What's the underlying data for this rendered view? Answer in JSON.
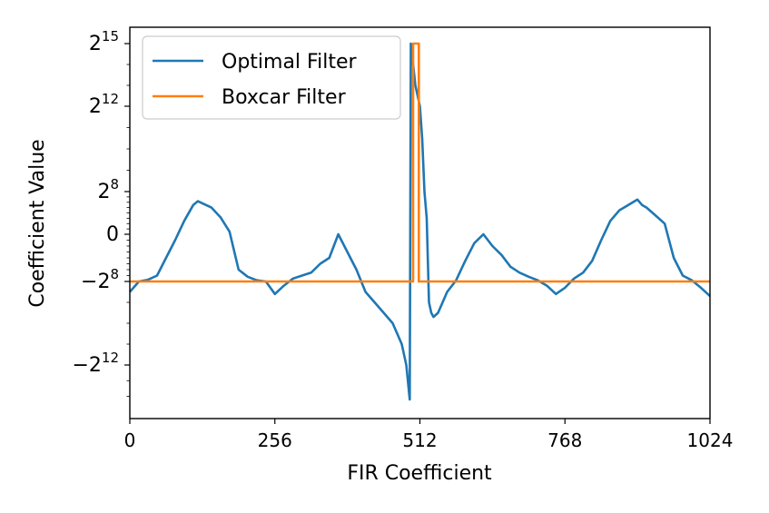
{
  "chart_data": {
    "type": "line",
    "title": "",
    "xlabel": "FIR Coefficient",
    "ylabel": "Coefficient  Value",
    "xlim": [
      0,
      1024
    ],
    "yscale": "symlog (base 2)",
    "ylim_label": [
      "-2^14",
      "2^15"
    ],
    "grid": false,
    "legend_position": "top-left",
    "x_ticks": [
      {
        "value": 0,
        "label": "0"
      },
      {
        "value": 256,
        "label": "256"
      },
      {
        "value": 512,
        "label": "512"
      },
      {
        "value": 768,
        "label": "768"
      },
      {
        "value": 1024,
        "label": "1024"
      }
    ],
    "y_ticks": [
      {
        "exp": 15,
        "sign": 1,
        "base": "2",
        "sup": "15"
      },
      {
        "exp": 12,
        "sign": 1,
        "base": "2",
        "sup": "12"
      },
      {
        "exp": 8,
        "sign": 1,
        "base": "2",
        "sup": "8"
      },
      {
        "exp": 0,
        "sign": 0,
        "base": "0",
        "sup": ""
      },
      {
        "exp": 8,
        "sign": -1,
        "base": "−2",
        "sup": "8"
      },
      {
        "exp": 12,
        "sign": -1,
        "base": "−2",
        "sup": "12"
      }
    ],
    "series": [
      {
        "name": "Optimal Filter",
        "color": "#1f77b4",
        "x": [
          0,
          16,
          32,
          48,
          64,
          80,
          96,
          112,
          120,
          128,
          144,
          160,
          176,
          192,
          208,
          224,
          240,
          256,
          272,
          288,
          304,
          320,
          336,
          352,
          368,
          384,
          400,
          416,
          432,
          448,
          464,
          480,
          488,
          494,
          496,
          500,
          504,
          508,
          512,
          516,
          520,
          524,
          528,
          532,
          536,
          544,
          560,
          576,
          592,
          608,
          624,
          640,
          656,
          672,
          688,
          704,
          720,
          736,
          752,
          768,
          784,
          800,
          816,
          832,
          848,
          864,
          880,
          896,
          904,
          912,
          928,
          944,
          960,
          976,
          992,
          1008,
          1024
        ],
        "y_exp": [
          -8.5,
          -8.0,
          -7.7,
          -7.0,
          -4.0,
          -1.0,
          2.5,
          5.5,
          6.2,
          5.8,
          5.0,
          3.2,
          0.5,
          -6.0,
          -7.2,
          -7.8,
          -8.0,
          -8.6,
          -8.2,
          -7.5,
          -7.0,
          -6.5,
          -5.0,
          -4.0,
          0.0,
          -3.0,
          -6.0,
          -8.5,
          -9.0,
          -9.5,
          -10.0,
          -11.0,
          -12.0,
          -14.2,
          15.0,
          14.0,
          13.0,
          12.5,
          12.0,
          10.5,
          8.0,
          3.0,
          -9.0,
          -9.5,
          -9.7,
          -9.5,
          -8.5,
          -7.8,
          -4.5,
          -1.5,
          0.0,
          -2.0,
          -3.5,
          -5.5,
          -6.5,
          -7.2,
          -7.8,
          -8.2,
          -8.6,
          -8.3,
          -7.5,
          -6.5,
          -4.5,
          -1.0,
          2.5,
          4.5,
          5.5,
          6.5,
          5.5,
          5.0,
          3.5,
          2.0,
          -4.0,
          -7.0,
          -7.8,
          -8.3,
          -8.7
        ]
      },
      {
        "name": "Boxcar Filter",
        "color": "#ff7f0e",
        "x": [
          0,
          500,
          500,
          510,
          510,
          1024
        ],
        "y_exp": [
          -8.0,
          -8.0,
          15.0,
          15.0,
          -8.0,
          -8.0
        ]
      }
    ]
  }
}
